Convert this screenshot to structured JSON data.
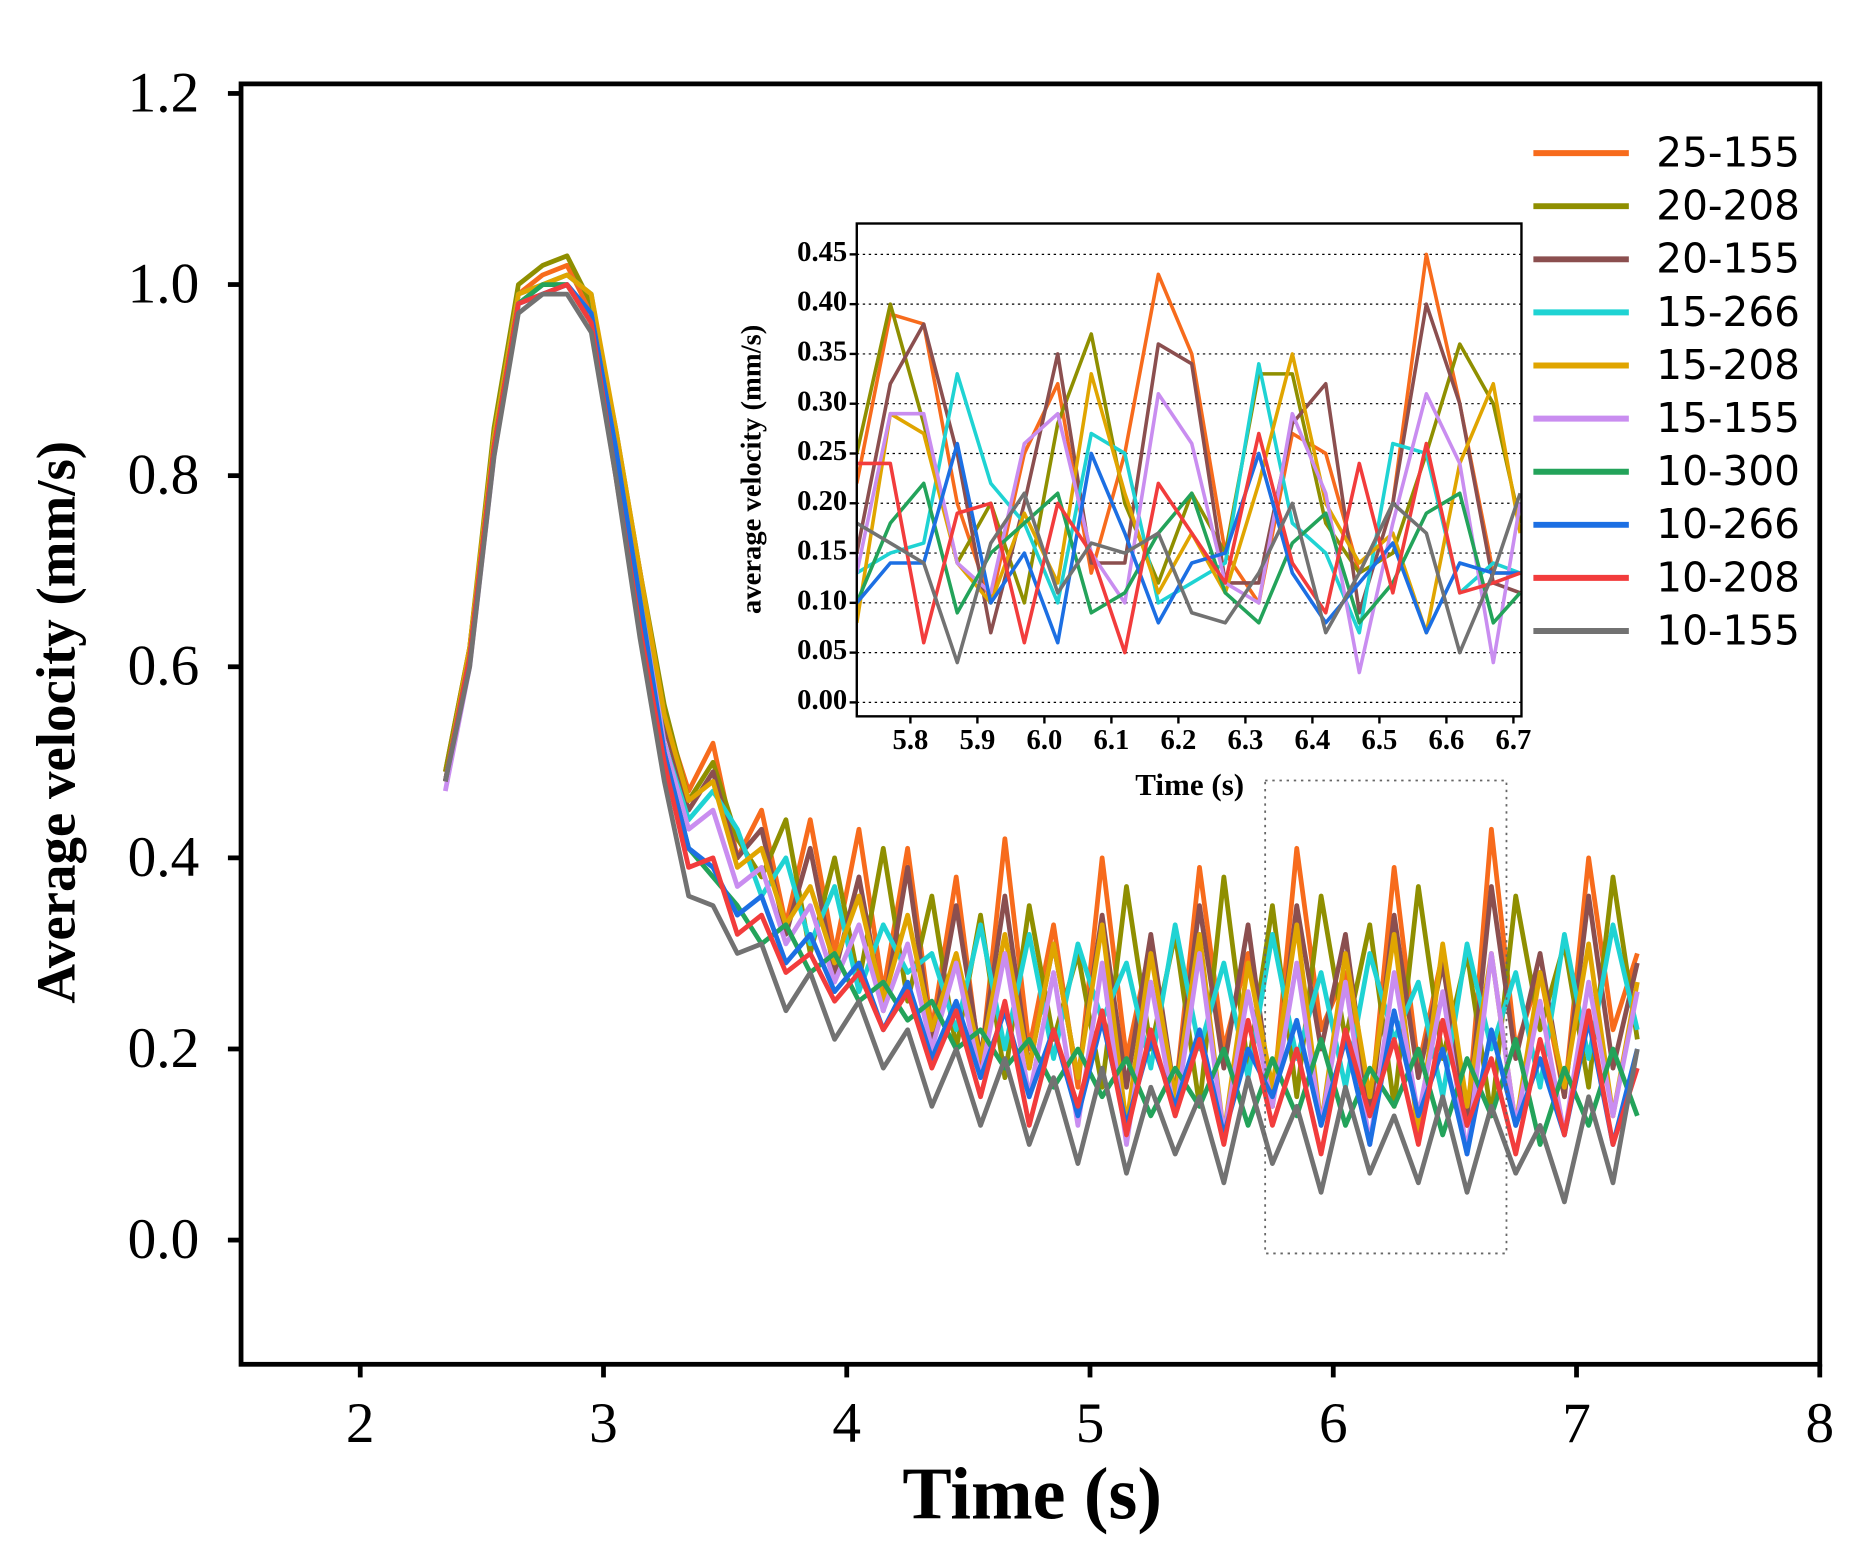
{
  "chart_data": [
    {
      "type": "line",
      "x_label": "Time (s)",
      "y_label": "Average velocity (mm/s)",
      "xlim": [
        1.51,
        8
      ],
      "ylim": [
        -0.13,
        1.21
      ],
      "xticks": [
        2,
        3,
        4,
        5,
        6,
        7,
        8
      ],
      "yticks": [
        {
          "value": 0,
          "label": "0.0"
        },
        0.2,
        0.4,
        0.6,
        0.8,
        {
          "value": 1,
          "label": "1.0"
        },
        1.2
      ],
      "legend": "upper right",
      "x": [
        2.35,
        2.45,
        2.55,
        2.65,
        2.75,
        2.85,
        2.95,
        3.05,
        3.15,
        3.25,
        3.35,
        3.45,
        3.55,
        3.65,
        3.75,
        3.85,
        3.95,
        4.05,
        4.15,
        4.25,
        4.35,
        4.45,
        4.55,
        4.65,
        4.75,
        4.85,
        4.95,
        5.05,
        5.15,
        5.25,
        5.35,
        5.45,
        5.55,
        5.65,
        5.75,
        5.85,
        5.95,
        6.05,
        6.15,
        6.25,
        6.35,
        6.45,
        6.55,
        6.65,
        6.75,
        6.85,
        6.95,
        7.05,
        7.15,
        7.25
      ],
      "series": [
        {
          "name": "25-155",
          "color": "#f76b1c",
          "values": [
            0.49,
            0.62,
            0.84,
            0.99,
            1.01,
            1.02,
            0.97,
            0.83,
            0.68,
            0.55,
            0.47,
            0.52,
            0.4,
            0.45,
            0.33,
            0.44,
            0.3,
            0.43,
            0.26,
            0.41,
            0.22,
            0.38,
            0.18,
            0.42,
            0.2,
            0.33,
            0.16,
            0.4,
            0.19,
            0.31,
            0.15,
            0.39,
            0.2,
            0.3,
            0.14,
            0.41,
            0.22,
            0.28,
            0.13,
            0.39,
            0.18,
            0.3,
            0.12,
            0.43,
            0.2,
            0.28,
            0.15,
            0.4,
            0.22,
            0.3
          ]
        },
        {
          "name": "20-208",
          "color": "#8f8f00",
          "values": [
            0.49,
            0.62,
            0.85,
            1.0,
            1.02,
            1.03,
            0.98,
            0.85,
            0.7,
            0.56,
            0.46,
            0.5,
            0.42,
            0.38,
            0.44,
            0.3,
            0.4,
            0.27,
            0.41,
            0.25,
            0.36,
            0.2,
            0.34,
            0.17,
            0.35,
            0.21,
            0.3,
            0.16,
            0.37,
            0.2,
            0.32,
            0.14,
            0.38,
            0.18,
            0.35,
            0.15,
            0.36,
            0.21,
            0.33,
            0.14,
            0.37,
            0.19,
            0.3,
            0.13,
            0.36,
            0.22,
            0.31,
            0.16,
            0.38,
            0.21
          ]
        },
        {
          "name": "20-155",
          "color": "#8b4f4f",
          "values": [
            0.48,
            0.61,
            0.83,
            0.98,
            1.0,
            1.0,
            0.96,
            0.84,
            0.7,
            0.54,
            0.45,
            0.49,
            0.4,
            0.43,
            0.32,
            0.41,
            0.28,
            0.38,
            0.24,
            0.39,
            0.21,
            0.35,
            0.19,
            0.36,
            0.18,
            0.31,
            0.17,
            0.34,
            0.16,
            0.32,
            0.15,
            0.35,
            0.18,
            0.33,
            0.14,
            0.35,
            0.2,
            0.32,
            0.13,
            0.34,
            0.17,
            0.29,
            0.12,
            0.37,
            0.19,
            0.3,
            0.15,
            0.36,
            0.18,
            0.29
          ]
        },
        {
          "name": "15-266",
          "color": "#1fd3d3",
          "values": [
            0.48,
            0.61,
            0.84,
            0.99,
            1.0,
            1.01,
            0.99,
            0.84,
            0.68,
            0.52,
            0.44,
            0.47,
            0.43,
            0.36,
            0.4,
            0.31,
            0.37,
            0.26,
            0.33,
            0.28,
            0.3,
            0.22,
            0.33,
            0.2,
            0.32,
            0.19,
            0.31,
            0.23,
            0.29,
            0.18,
            0.33,
            0.2,
            0.29,
            0.17,
            0.32,
            0.19,
            0.28,
            0.16,
            0.3,
            0.21,
            0.27,
            0.15,
            0.31,
            0.2,
            0.28,
            0.16,
            0.32,
            0.19,
            0.33,
            0.22
          ]
        },
        {
          "name": "15-208",
          "color": "#e0a500",
          "values": [
            0.48,
            0.62,
            0.84,
            0.99,
            1.0,
            1.01,
            0.99,
            0.85,
            0.7,
            0.55,
            0.46,
            0.48,
            0.39,
            0.41,
            0.33,
            0.37,
            0.29,
            0.36,
            0.25,
            0.34,
            0.22,
            0.3,
            0.19,
            0.32,
            0.18,
            0.31,
            0.17,
            0.33,
            0.12,
            0.3,
            0.15,
            0.32,
            0.11,
            0.29,
            0.16,
            0.33,
            0.12,
            0.3,
            0.15,
            0.32,
            0.11,
            0.31,
            0.14,
            0.3,
            0.12,
            0.28,
            0.16,
            0.31,
            0.13,
            0.27
          ]
        },
        {
          "name": "15-155",
          "color": "#c98df0",
          "values": [
            0.47,
            0.6,
            0.82,
            0.98,
            0.99,
            1.0,
            0.97,
            0.83,
            0.67,
            0.52,
            0.43,
            0.45,
            0.37,
            0.39,
            0.31,
            0.35,
            0.27,
            0.33,
            0.24,
            0.31,
            0.2,
            0.29,
            0.17,
            0.3,
            0.15,
            0.28,
            0.12,
            0.29,
            0.1,
            0.27,
            0.13,
            0.3,
            0.11,
            0.26,
            0.14,
            0.29,
            0.12,
            0.27,
            0.1,
            0.28,
            0.13,
            0.26,
            0.09,
            0.3,
            0.12,
            0.25,
            0.11,
            0.27,
            0.13,
            0.26
          ]
        },
        {
          "name": "10-300",
          "color": "#23a35a",
          "values": [
            0.48,
            0.61,
            0.83,
            0.98,
            1.0,
            1.0,
            0.96,
            0.82,
            0.66,
            0.51,
            0.41,
            0.38,
            0.35,
            0.31,
            0.33,
            0.28,
            0.3,
            0.25,
            0.27,
            0.23,
            0.25,
            0.2,
            0.22,
            0.18,
            0.21,
            0.16,
            0.2,
            0.15,
            0.19,
            0.13,
            0.18,
            0.14,
            0.2,
            0.12,
            0.19,
            0.13,
            0.21,
            0.12,
            0.18,
            0.14,
            0.2,
            0.11,
            0.19,
            0.13,
            0.21,
            0.1,
            0.18,
            0.12,
            0.2,
            0.13
          ]
        },
        {
          "name": "10-266",
          "color": "#1c6fe3",
          "values": [
            0.48,
            0.61,
            0.83,
            0.98,
            0.99,
            1.0,
            0.97,
            0.83,
            0.67,
            0.51,
            0.41,
            0.39,
            0.34,
            0.36,
            0.29,
            0.32,
            0.26,
            0.29,
            0.22,
            0.27,
            0.19,
            0.25,
            0.17,
            0.24,
            0.15,
            0.22,
            0.13,
            0.23,
            0.12,
            0.21,
            0.14,
            0.22,
            0.11,
            0.2,
            0.15,
            0.23,
            0.12,
            0.21,
            0.1,
            0.24,
            0.13,
            0.2,
            0.09,
            0.22,
            0.12,
            0.19,
            0.11,
            0.23,
            0.1,
            0.2
          ]
        },
        {
          "name": "10-208",
          "color": "#f23c3c",
          "values": [
            0.48,
            0.61,
            0.83,
            0.98,
            0.99,
            1.0,
            0.96,
            0.8,
            0.64,
            0.5,
            0.39,
            0.4,
            0.32,
            0.34,
            0.28,
            0.3,
            0.25,
            0.28,
            0.22,
            0.26,
            0.18,
            0.24,
            0.15,
            0.25,
            0.12,
            0.22,
            0.14,
            0.24,
            0.11,
            0.22,
            0.13,
            0.21,
            0.1,
            0.23,
            0.12,
            0.2,
            0.09,
            0.22,
            0.13,
            0.21,
            0.1,
            0.23,
            0.12,
            0.19,
            0.09,
            0.21,
            0.11,
            0.24,
            0.1,
            0.18
          ]
        },
        {
          "name": "10-155",
          "color": "#727272",
          "values": [
            0.48,
            0.6,
            0.82,
            0.97,
            0.99,
            0.99,
            0.95,
            0.8,
            0.63,
            0.48,
            0.36,
            0.35,
            0.3,
            0.31,
            0.24,
            0.28,
            0.21,
            0.25,
            0.18,
            0.22,
            0.14,
            0.2,
            0.12,
            0.19,
            0.1,
            0.17,
            0.08,
            0.18,
            0.07,
            0.16,
            0.09,
            0.15,
            0.06,
            0.17,
            0.08,
            0.14,
            0.05,
            0.16,
            0.07,
            0.13,
            0.06,
            0.15,
            0.05,
            0.14,
            0.07,
            0.12,
            0.04,
            0.15,
            0.06,
            0.2
          ]
        }
      ]
    },
    {
      "type": "line",
      "x_label": "Time (s)",
      "y_label": "average velocity (mm/s)",
      "xlim": [
        5.72,
        6.712
      ],
      "ylim": [
        -0.014,
        0.481
      ],
      "xticks": [
        5.8,
        5.9,
        {
          "value": 6,
          "label": "6.0"
        },
        6.1,
        6.2,
        6.3,
        6.4,
        6.5,
        6.6,
        6.7
      ],
      "yticks": [
        {
          "value": 0,
          "label": "0.00"
        },
        0.05,
        {
          "value": 0.1,
          "label": "0.10"
        },
        0.15,
        {
          "value": 0.2,
          "label": "0.20"
        },
        0.25,
        {
          "value": 0.3,
          "label": "0.30"
        },
        0.35,
        {
          "value": 0.4,
          "label": "0.40"
        },
        0.45
      ],
      "grid": true,
      "x": [
        5.72,
        5.77,
        5.82,
        5.87,
        5.92,
        5.97,
        6.02,
        6.07,
        6.12,
        6.17,
        6.22,
        6.27,
        6.32,
        6.37,
        6.42,
        6.47,
        6.52,
        6.57,
        6.62,
        6.67,
        6.71
      ],
      "series": [
        {
          "color": "#f76b1c",
          "values": [
            0.22,
            0.39,
            0.38,
            0.2,
            0.1,
            0.25,
            0.32,
            0.13,
            0.25,
            0.43,
            0.35,
            0.15,
            0.1,
            0.27,
            0.25,
            0.13,
            0.2,
            0.45,
            0.3,
            0.13,
            0.13
          ]
        },
        {
          "color": "#8f8f00",
          "values": [
            0.25,
            0.4,
            0.28,
            0.14,
            0.2,
            0.1,
            0.28,
            0.37,
            0.2,
            0.12,
            0.21,
            0.15,
            0.33,
            0.33,
            0.18,
            0.13,
            0.15,
            0.25,
            0.36,
            0.3,
            0.18
          ]
        },
        {
          "color": "#8b4f4f",
          "values": [
            0.15,
            0.32,
            0.38,
            0.25,
            0.07,
            0.2,
            0.35,
            0.14,
            0.14,
            0.36,
            0.34,
            0.12,
            0.12,
            0.28,
            0.32,
            0.09,
            0.2,
            0.4,
            0.3,
            0.12,
            0.11
          ]
        },
        {
          "color": "#1fd3d3",
          "values": [
            0.13,
            0.15,
            0.16,
            0.33,
            0.22,
            0.18,
            0.1,
            0.27,
            0.25,
            0.1,
            0.12,
            0.14,
            0.34,
            0.18,
            0.15,
            0.07,
            0.26,
            0.25,
            0.11,
            0.14,
            0.13
          ]
        },
        {
          "color": "#e0a500",
          "values": [
            0.08,
            0.29,
            0.27,
            0.14,
            0.1,
            0.19,
            0.12,
            0.33,
            0.21,
            0.11,
            0.17,
            0.11,
            0.22,
            0.35,
            0.2,
            0.14,
            0.17,
            0.07,
            0.24,
            0.32,
            0.17
          ]
        },
        {
          "color": "#c98df0",
          "values": [
            0.13,
            0.29,
            0.29,
            0.14,
            0.11,
            0.26,
            0.29,
            0.15,
            0.1,
            0.31,
            0.26,
            0.12,
            0.1,
            0.29,
            0.21,
            0.03,
            0.18,
            0.31,
            0.24,
            0.04,
            0.2
          ]
        },
        {
          "color": "#23a35a",
          "values": [
            0.1,
            0.18,
            0.22,
            0.09,
            0.15,
            0.18,
            0.21,
            0.09,
            0.11,
            0.17,
            0.21,
            0.11,
            0.08,
            0.16,
            0.19,
            0.08,
            0.12,
            0.19,
            0.21,
            0.08,
            0.11
          ]
        },
        {
          "color": "#1c6fe3",
          "values": [
            0.1,
            0.14,
            0.14,
            0.26,
            0.1,
            0.15,
            0.06,
            0.25,
            0.17,
            0.08,
            0.14,
            0.15,
            0.25,
            0.13,
            0.08,
            0.12,
            0.16,
            0.07,
            0.14,
            0.13,
            0.13
          ]
        },
        {
          "color": "#f23c3c",
          "values": [
            0.24,
            0.24,
            0.06,
            0.19,
            0.2,
            0.06,
            0.2,
            0.15,
            0.05,
            0.22,
            0.17,
            0.12,
            0.27,
            0.14,
            0.09,
            0.24,
            0.11,
            0.26,
            0.11,
            0.12,
            0.13
          ]
        },
        {
          "color": "#727272",
          "values": [
            0.18,
            0.16,
            0.14,
            0.04,
            0.16,
            0.21,
            0.11,
            0.16,
            0.15,
            0.17,
            0.09,
            0.08,
            0.13,
            0.2,
            0.07,
            0.13,
            0.2,
            0.17,
            0.05,
            0.13,
            0.21
          ]
        }
      ]
    }
  ]
}
